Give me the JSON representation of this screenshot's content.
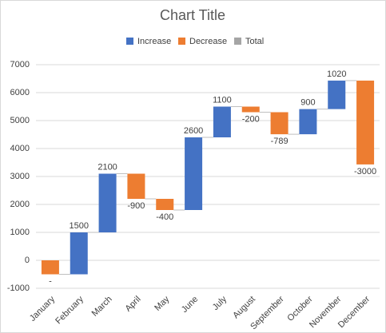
{
  "chart_data": {
    "type": "waterfall",
    "title": "Chart Title",
    "legend_items": [
      {
        "name": "Increase",
        "color": "#4472c4"
      },
      {
        "name": "Decrease",
        "color": "#ed7d31"
      },
      {
        "name": "Total",
        "color": "#a5a5a5"
      }
    ],
    "categories": [
      "January",
      "February",
      "March",
      "April",
      "May",
      "June",
      "July",
      "August",
      "September",
      "October",
      "November",
      "December"
    ],
    "values": [
      -500,
      1500,
      2100,
      -900,
      -400,
      2600,
      1100,
      -200,
      -789,
      900,
      1020,
      -3000
    ],
    "value_labels": [
      "-",
      "1500",
      "2100",
      "-900",
      "-400",
      "2600",
      "1100",
      "-200",
      "-789",
      "900",
      "1020",
      "-3000"
    ],
    "ylim": [
      -1000,
      7000
    ],
    "yticks": [
      -1000,
      0,
      1000,
      2000,
      3000,
      4000,
      5000,
      6000,
      7000
    ],
    "grid": true
  }
}
